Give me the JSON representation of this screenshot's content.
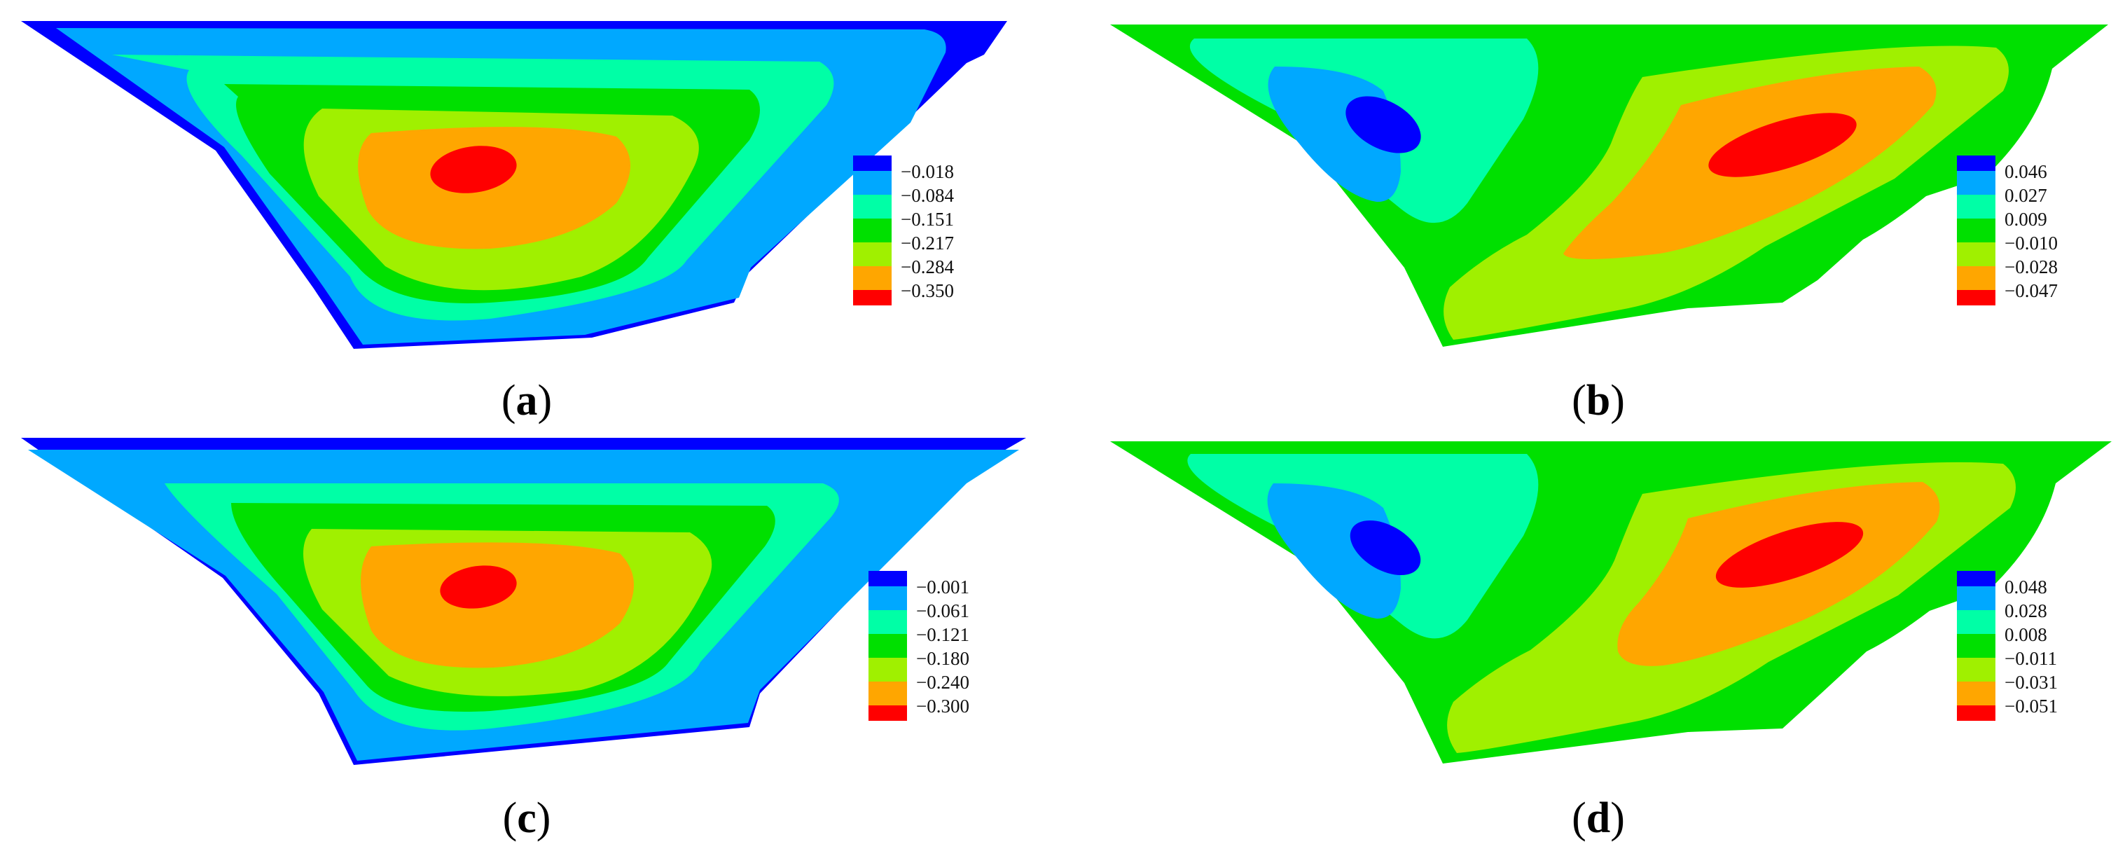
{
  "colors": {
    "c1": "#0000ff",
    "c2": "#00a8ff",
    "c3": "#00ffa6",
    "c4": "#00e000",
    "c5": "#a0f000",
    "c6": "#ffa600",
    "c7": "#ff0000",
    "outline": "#0000ff"
  },
  "panels": [
    {
      "id": "a",
      "caption": {
        "open": "(",
        "letter": "a",
        "close": ")"
      },
      "legend": {
        "labels": [
          "−0.018",
          "−0.084",
          "−0.151",
          "−0.217",
          "−0.284",
          "−0.350"
        ]
      }
    },
    {
      "id": "b",
      "caption": {
        "open": "(",
        "letter": "b",
        "close": ")"
      },
      "legend": {
        "labels": [
          "0.046",
          "0.027",
          "0.009",
          "−0.010",
          "−0.028",
          "−0.047"
        ]
      }
    },
    {
      "id": "c",
      "caption": {
        "open": "(",
        "letter": "c",
        "close": ")"
      },
      "legend": {
        "labels": [
          "−0.001",
          "−0.061",
          "−0.121",
          "−0.180",
          "−0.240",
          "−0.300"
        ]
      }
    },
    {
      "id": "d",
      "caption": {
        "open": "(",
        "letter": "d",
        "close": ")"
      },
      "legend": {
        "labels": [
          "0.048",
          "0.028",
          "0.008",
          "−0.011",
          "−0.031",
          "−0.051"
        ]
      }
    }
  ]
}
